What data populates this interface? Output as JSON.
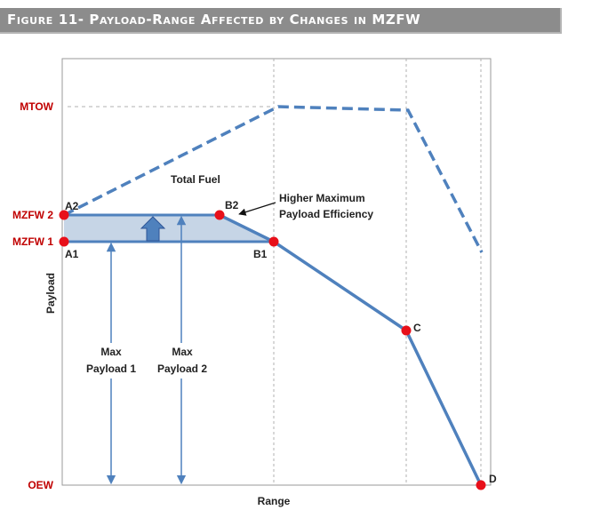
{
  "figure": {
    "title": "Figure 11- Payload-Range Affected by Changes in MZFW"
  },
  "axes": {
    "x_label": "Range",
    "y_label": "Payload",
    "y_ticks": {
      "mtow": "MTOW",
      "mzfw2": "MZFW 2",
      "mzfw1": "MZFW 1",
      "oew": "OEW"
    }
  },
  "points": {
    "a2": "A2",
    "a1": "A1",
    "b2": "B2",
    "b1": "B1",
    "c": "C",
    "d": "D"
  },
  "annotations": {
    "total_fuel": "Total Fuel",
    "higher_max_line1": "Higher Maximum",
    "higher_max_line2": "Payload Efficiency",
    "max_payload1_line1": "Max",
    "max_payload1_line2": "Payload 1",
    "max_payload2_line1": "Max",
    "max_payload2_line2": "Payload 2"
  },
  "colors": {
    "curve": "#4f81bd",
    "point": "#e8101a",
    "tick_label": "#c00000",
    "shaded_region": "#c6d5e6"
  }
}
